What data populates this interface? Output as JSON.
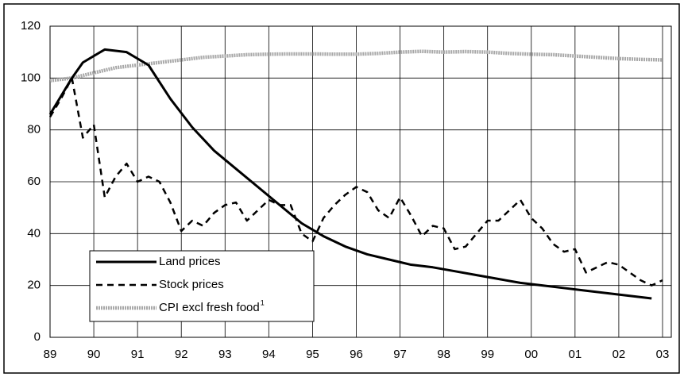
{
  "chart_data": {
    "type": "line",
    "xlim": [
      1989,
      2003.2
    ],
    "xticks": [
      {
        "value": 1989,
        "label": "89"
      },
      {
        "value": 1990,
        "label": "90"
      },
      {
        "value": 1991,
        "label": "91"
      },
      {
        "value": 1992,
        "label": "92"
      },
      {
        "value": 1993,
        "label": "93"
      },
      {
        "value": 1994,
        "label": "94"
      },
      {
        "value": 1995,
        "label": "95"
      },
      {
        "value": 1996,
        "label": "96"
      },
      {
        "value": 1997,
        "label": "97"
      },
      {
        "value": 1998,
        "label": "98"
      },
      {
        "value": 1999,
        "label": "99"
      },
      {
        "value": 2000,
        "label": "00"
      },
      {
        "value": 2001,
        "label": "01"
      },
      {
        "value": 2002,
        "label": "02"
      },
      {
        "value": 2003,
        "label": "03"
      }
    ],
    "ylim": [
      0,
      120
    ],
    "yticks": [
      0,
      20,
      40,
      60,
      80,
      100,
      120
    ],
    "grid": true,
    "legend": "lower-left",
    "footnote_mark": "1",
    "series": [
      {
        "name": "Land prices",
        "color": "#000000",
        "style": "solid",
        "x": [
          1989,
          1989.5,
          1989.75,
          1990.25,
          1990.75,
          1991.25,
          1991.75,
          1992.25,
          1992.75,
          1993.25,
          1993.75,
          1994.25,
          1994.75,
          1995.25,
          1995.75,
          1996.25,
          1996.75,
          1997.25,
          1997.75,
          1998.25,
          1998.75,
          1999.25,
          1999.75,
          2000.25,
          2000.75,
          2001.25,
          2001.75,
          2002.25,
          2002.75
        ],
        "values": [
          86,
          100,
          106,
          111,
          110,
          105,
          92,
          81,
          72,
          65,
          58,
          51,
          44,
          39,
          35,
          32,
          30,
          28,
          27,
          25.5,
          24,
          22.5,
          21,
          20,
          19,
          18,
          17,
          16,
          15
        ]
      },
      {
        "name": "Stock prices",
        "color": "#000000",
        "style": "dashed",
        "x": [
          1989,
          1989.25,
          1989.5,
          1989.75,
          1990,
          1990.25,
          1990.5,
          1990.75,
          1991,
          1991.25,
          1991.5,
          1991.75,
          1992,
          1992.25,
          1992.5,
          1992.75,
          1993,
          1993.25,
          1993.5,
          1993.75,
          1994,
          1994.25,
          1994.5,
          1994.75,
          1995,
          1995.25,
          1995.5,
          1995.75,
          1996,
          1996.25,
          1996.5,
          1996.75,
          1997,
          1997.25,
          1997.5,
          1997.75,
          1998,
          1998.25,
          1998.5,
          1998.75,
          1999,
          1999.25,
          1999.5,
          1999.75,
          2000,
          2000.25,
          2000.5,
          2000.75,
          2001,
          2001.25,
          2001.5,
          2001.75,
          2002,
          2002.25,
          2002.5,
          2002.75,
          2003
        ],
        "values": [
          85,
          92,
          100,
          77,
          82,
          54,
          62,
          67,
          60,
          62,
          60,
          52,
          41,
          45,
          43,
          48,
          51,
          52,
          45,
          49,
          53,
          51,
          51,
          40,
          37,
          46,
          51,
          55,
          58,
          56,
          49,
          46,
          54,
          47,
          39,
          43,
          42,
          34,
          35,
          40,
          45,
          45,
          49,
          53,
          46,
          42,
          36,
          33,
          34,
          25,
          27,
          29,
          28,
          25,
          22,
          20,
          22
        ]
      },
      {
        "name": "CPI excl fresh food",
        "color": "#a8a8a8",
        "style": "dotted",
        "x": [
          1989,
          1989.5,
          1990,
          1990.5,
          1991,
          1991.5,
          1992,
          1992.5,
          1993,
          1993.5,
          1994,
          1994.5,
          1995,
          1995.5,
          1996,
          1996.5,
          1997,
          1997.5,
          1998,
          1998.5,
          1999,
          1999.5,
          2000,
          2000.5,
          2001,
          2001.5,
          2002,
          2002.5,
          2003
        ],
        "values": [
          99,
          100,
          102,
          104,
          105,
          106,
          107,
          108,
          108.5,
          109,
          109.2,
          109.3,
          109.3,
          109.2,
          109.2,
          109.5,
          110,
          110.3,
          110,
          110.2,
          110,
          109.5,
          109.2,
          109,
          108.5,
          108,
          107.5,
          107.2,
          107
        ]
      }
    ]
  }
}
